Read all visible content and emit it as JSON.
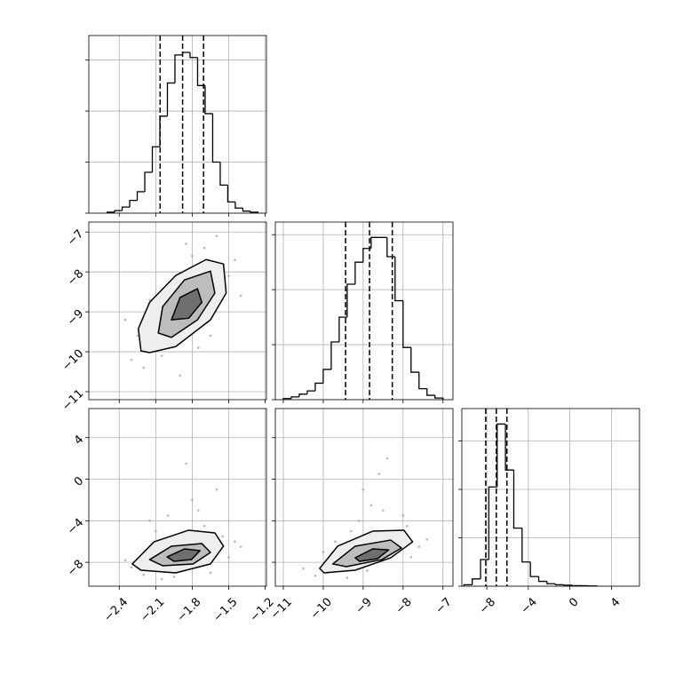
{
  "chart_data": [
    {
      "type": "histogram",
      "bins": [
        -2.5,
        -2.438,
        -2.376,
        -2.314,
        -2.252,
        -2.19,
        -2.128,
        -2.066,
        -2.004,
        -1.942,
        -1.88,
        -1.818,
        -1.756,
        -1.694,
        -1.632,
        -1.57,
        -1.508,
        -1.446,
        -1.384,
        -1.322,
        -1.26
      ],
      "values": [
        0.02,
        0.05,
        0.12,
        0.25,
        0.42,
        0.8,
        1.3,
        1.9,
        2.55,
        3.1,
        3.15,
        3.05,
        2.5,
        1.95,
        1.0,
        0.55,
        0.22,
        0.1,
        0.04,
        0.02
      ],
      "quantiles": [
        -2.064,
        -1.879,
        -1.707
      ],
      "xlim": [
        -2.65,
        -1.19
      ],
      "xticks": [
        -2.4,
        -2.1,
        -1.8,
        -1.5,
        -1.2
      ],
      "ylim": [
        0,
        3.48
      ],
      "yticks": [
        0,
        1,
        2,
        3
      ],
      "grid": true,
      "color": "#000000"
    },
    {
      "type": "scatter",
      "x": [
        -2.3,
        -2.25,
        -2.2,
        -2.1,
        -2.0,
        -1.95,
        -1.9,
        -1.8,
        -1.7,
        -1.65,
        -1.55,
        -1.5,
        -1.45,
        -2.35,
        -1.6,
        -2.05,
        -1.75,
        -1.4,
        -2.15,
        -1.85
      ],
      "y": [
        -10.2,
        -9.6,
        -10.4,
        -9.9,
        -9.5,
        -8.4,
        -10.6,
        -7.6,
        -7.4,
        -9.6,
        -7.9,
        -8.1,
        -7.7,
        -9.2,
        -7.1,
        -10.1,
        -9.9,
        -8.6,
        -8.7,
        -7.3
      ],
      "contours": [
        {
          "x": [
            -2.221,
            -2.243,
            -2.15,
            -1.936,
            -1.686,
            -1.543,
            -1.521,
            -1.65,
            -1.936,
            -2.15
          ],
          "y": [
            -9.98,
            -9.42,
            -8.76,
            -8.09,
            -7.69,
            -7.8,
            -8.53,
            -9.2,
            -9.87,
            -10.02
          ]
        },
        {
          "x": [
            -2.079,
            -2.043,
            -1.864,
            -1.65,
            -1.614,
            -1.757,
            -1.971
          ],
          "y": [
            -9.53,
            -8.87,
            -8.2,
            -7.98,
            -8.53,
            -9.2,
            -9.64
          ]
        },
        {
          "x": [
            -1.971,
            -1.9,
            -1.757,
            -1.721,
            -1.829
          ],
          "y": [
            -9.2,
            -8.64,
            -8.42,
            -8.76,
            -9.16
          ]
        }
      ],
      "xlim": [
        -2.65,
        -1.19
      ],
      "xticks": [
        -2.4,
        -2.1,
        -1.8,
        -1.5,
        -1.2
      ],
      "ylim": [
        -11.2,
        -6.75
      ],
      "yticks": [
        {
          "value": -7,
          "label": "−7"
        },
        {
          "value": -8,
          "label": "−8"
        },
        {
          "value": -9,
          "label": "−9"
        },
        {
          "value": -10,
          "label": "−10"
        },
        {
          "value": -11,
          "label": "−11"
        }
      ],
      "grid": true,
      "color": "#9a9a9a"
    },
    {
      "type": "histogram",
      "bins": [
        -11.0,
        -10.8,
        -10.6,
        -10.4,
        -10.2,
        -10.0,
        -9.8,
        -9.6,
        -9.4,
        -9.2,
        -9.0,
        -8.8,
        -8.6,
        -8.4,
        -8.2,
        -8.0,
        -7.8,
        -7.6,
        -7.4,
        -7.2,
        -7.0
      ],
      "values": [
        0.02,
        0.05,
        0.1,
        0.16,
        0.3,
        0.55,
        1.05,
        1.5,
        2.1,
        2.5,
        2.75,
        2.95,
        2.95,
        2.6,
        1.8,
        0.95,
        0.5,
        0.2,
        0.08,
        0.03
      ],
      "quantiles": [
        -9.44,
        -8.84,
        -8.27
      ],
      "xlim": [
        -11.2,
        -6.75
      ],
      "xticks": [
        -11,
        -10,
        -9,
        -8,
        -7
      ],
      "ylim": [
        0,
        3.23
      ],
      "yticks": [
        0,
        1,
        2,
        3
      ],
      "grid": true,
      "color": "#000000"
    },
    {
      "type": "scatter",
      "x": [
        -2.3,
        -2.25,
        -2.2,
        -2.1,
        -2.0,
        -1.95,
        -1.9,
        -1.8,
        -1.7,
        -1.65,
        -1.55,
        -1.5,
        -1.45,
        -2.35,
        -1.6,
        -2.05,
        -1.75,
        -1.4,
        -2.15,
        -1.85
      ],
      "y": [
        -8.5,
        -8.0,
        -9.2,
        -5.0,
        -3.5,
        -9.4,
        -6.0,
        -2.0,
        -4.5,
        -9.0,
        -5.5,
        -7.5,
        -6.0,
        -7.8,
        -1.0,
        -9.6,
        -3.0,
        -6.5,
        -4.0,
        1.5
      ],
      "contours": [
        {
          "x": [
            -2.293,
            -2.114,
            -1.829,
            -1.614,
            -1.543,
            -1.65,
            -1.936,
            -2.221
          ],
          "y": [
            -8.16,
            -6.03,
            -4.91,
            -5.17,
            -6.45,
            -8.16,
            -9.02,
            -8.76
          ]
        },
        {
          "x": [
            -2.15,
            -1.971,
            -1.721,
            -1.65,
            -1.793,
            -2.043
          ],
          "y": [
            -7.74,
            -6.45,
            -6.2,
            -7.05,
            -8.16,
            -8.33
          ]
        },
        {
          "x": [
            -2.007,
            -1.864,
            -1.736,
            -1.807,
            -1.95
          ],
          "y": [
            -7.48,
            -6.71,
            -6.88,
            -7.74,
            -7.91
          ]
        }
      ],
      "xlim": [
        -2.65,
        -1.19
      ],
      "xticks": [
        {
          "value": -2.4,
          "label": "−2.4"
        },
        {
          "value": -2.1,
          "label": "−2.1"
        },
        {
          "value": -1.8,
          "label": "−1.8"
        },
        {
          "value": -1.5,
          "label": "−1.5"
        },
        {
          "value": -1.2,
          "label": "−1.2"
        }
      ],
      "ylim": [
        -10.3,
        6.8
      ],
      "yticks": [
        {
          "value": 4,
          "label": "4"
        },
        {
          "value": 0,
          "label": "0"
        },
        {
          "value": -4,
          "label": "−4"
        },
        {
          "value": -8,
          "label": "−8"
        }
      ],
      "grid": true,
      "color": "#9a9a9a"
    },
    {
      "type": "scatter",
      "x": [
        -10.5,
        -10.2,
        -10.0,
        -9.7,
        -9.4,
        -9.1,
        -8.8,
        -8.5,
        -8.2,
        -7.9,
        -7.6,
        -7.4,
        -9.9,
        -9.0,
        -8.6,
        -8.0,
        -8.9,
        -9.3,
        -7.8,
        -8.4
      ],
      "y": [
        -8.6,
        -9.3,
        -7.0,
        -6.0,
        -9.5,
        -4.0,
        -2.5,
        -3.0,
        -5.0,
        -4.5,
        -6.5,
        -5.8,
        -9.0,
        -1.0,
        0.5,
        -3.5,
        -8.8,
        -5.0,
        -7.5,
        2.0
      ],
      "contours": [
        {
          "x": [
            -10.09,
            -9.64,
            -8.76,
            -7.98,
            -7.76,
            -8.31,
            -9.2,
            -9.98
          ],
          "y": [
            -8.59,
            -6.45,
            -5.0,
            -4.91,
            -6.03,
            -7.57,
            -8.76,
            -9.02
          ]
        },
        {
          "x": [
            -9.76,
            -9.2,
            -8.31,
            -8.04,
            -8.53,
            -9.42
          ],
          "y": [
            -8.16,
            -6.45,
            -5.86,
            -6.62,
            -7.74,
            -8.42
          ]
        },
        {
          "x": [
            -9.2,
            -8.76,
            -8.36,
            -8.64,
            -9.09
          ],
          "y": [
            -7.57,
            -6.71,
            -6.8,
            -7.65,
            -7.91
          ]
        }
      ],
      "xlim": [
        -11.2,
        -6.75
      ],
      "xticks": [
        {
          "value": -11,
          "label": "−11"
        },
        {
          "value": -10,
          "label": "−10"
        },
        {
          "value": -9,
          "label": "−9"
        },
        {
          "value": -8,
          "label": "−8"
        },
        {
          "value": -7,
          "label": "−7"
        }
      ],
      "ylim": [
        -10.3,
        6.8
      ],
      "yticks": [
        4,
        0,
        -4,
        -8
      ],
      "grid": true,
      "color": "#9a9a9a"
    },
    {
      "type": "histogram",
      "bins": [
        -10.2,
        -9.4,
        -8.6,
        -7.8,
        -7.0,
        -6.2,
        -5.4,
        -4.6,
        -3.8,
        -3.0,
        -2.2,
        -1.4,
        -0.6,
        0.2,
        1.0,
        1.8,
        2.6
      ],
      "values": [
        0.03,
        0.15,
        0.55,
        2.05,
        3.35,
        2.4,
        1.2,
        0.5,
        0.2,
        0.1,
        0.05,
        0.03,
        0.02,
        0.01,
        0.01,
        0.005
      ],
      "quantiles": [
        -8.1,
        -7.08,
        -6.06
      ],
      "xlim": [
        -10.4,
        6.7
      ],
      "xticks": [
        {
          "value": -8,
          "label": "−8"
        },
        {
          "value": -4,
          "label": "−4"
        },
        {
          "value": 0,
          "label": "0"
        },
        {
          "value": 4,
          "label": "4"
        }
      ],
      "ylim": [
        0,
        3.67
      ],
      "yticks": [
        0,
        1,
        2,
        3
      ],
      "grid": true,
      "color": "#000000"
    }
  ]
}
